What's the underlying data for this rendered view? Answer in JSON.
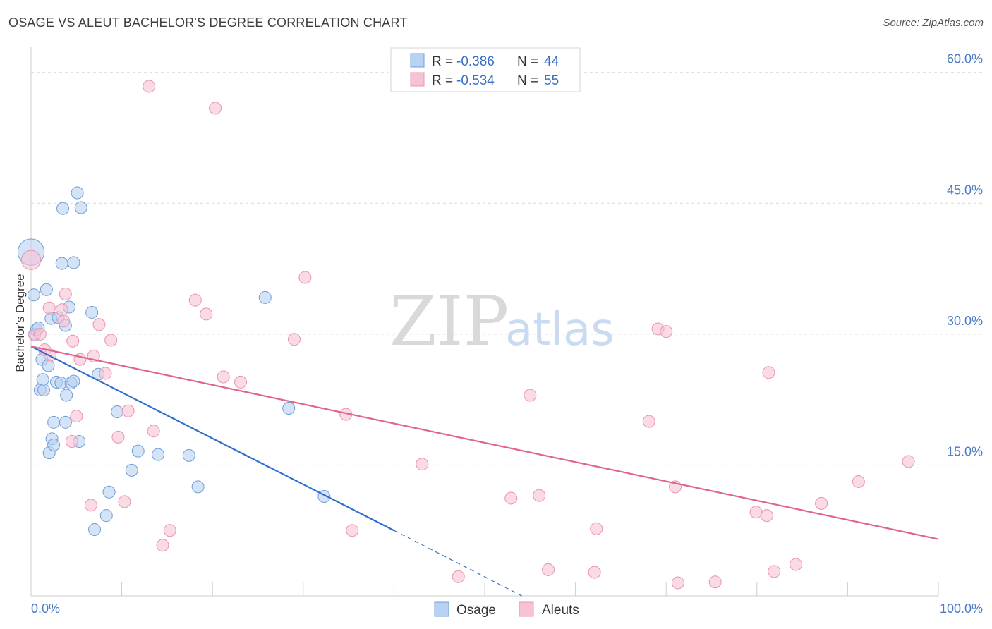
{
  "title": "OSAGE VS ALEUT BACHELOR'S DEGREE CORRELATION CHART",
  "source": "Source: ZipAtlas.com",
  "watermark": {
    "part1": "ZIP",
    "part2": "atlas"
  },
  "colors": {
    "osage_fill": "#b9d1f2",
    "osage_stroke": "#6f9ed8",
    "osage_line": "#2f6fd0",
    "aleut_fill": "#f7c3d3",
    "aleut_stroke": "#e993b0",
    "aleut_line": "#e0648e",
    "grid": "#d9d9d9",
    "axis": "#cccccc",
    "tick_text": "#4a7ac9"
  },
  "legend": {
    "rows": [
      {
        "r_label": "R =",
        "r_value": "-0.386",
        "n_label": "N =",
        "n_value": "44",
        "series": "osage"
      },
      {
        "r_label": "R =",
        "r_value": "-0.534",
        "n_label": "N =",
        "n_value": "55",
        "series": "aleut"
      }
    ]
  },
  "bottom_legend": [
    {
      "label": "Osage",
      "series": "osage"
    },
    {
      "label": "Aleuts",
      "series": "aleut"
    }
  ],
  "chart_data": {
    "type": "scatter",
    "xlabel": "",
    "ylabel": "Bachelor's Degree",
    "xlim": [
      0,
      100
    ],
    "ylim": [
      0,
      62
    ],
    "x_tick_labels": [
      {
        "value": 0,
        "label": "0.0%"
      },
      {
        "value": 100,
        "label": "100.0%"
      }
    ],
    "y_tick_labels": [
      {
        "value": 15,
        "label": "15.0%"
      },
      {
        "value": 30,
        "label": "30.0%"
      },
      {
        "value": 45,
        "label": "45.0%"
      },
      {
        "value": 60,
        "label": "60.0%"
      }
    ],
    "x_minor_ticks": [
      10,
      20,
      30,
      40,
      50,
      60,
      70,
      80,
      90,
      100
    ],
    "grid": true,
    "legend_position": "top-center",
    "series": [
      {
        "name": "Osage",
        "key": "osage",
        "points": [
          [
            0.0,
            39.4,
            2.2
          ],
          [
            0.3,
            34.5,
            1
          ],
          [
            0.4,
            30.0,
            1
          ],
          [
            0.6,
            30.5,
            1
          ],
          [
            0.8,
            30.7,
            1
          ],
          [
            1.0,
            23.6,
            1
          ],
          [
            1.2,
            27.1,
            1
          ],
          [
            1.3,
            24.8,
            1
          ],
          [
            1.4,
            23.6,
            1
          ],
          [
            1.7,
            35.1,
            1
          ],
          [
            1.9,
            26.4,
            1
          ],
          [
            2.0,
            16.4,
            1
          ],
          [
            2.2,
            31.8,
            1
          ],
          [
            2.3,
            18.0,
            1
          ],
          [
            2.5,
            17.3,
            1
          ],
          [
            2.5,
            19.9,
            1
          ],
          [
            2.8,
            24.5,
            1
          ],
          [
            3.0,
            31.9,
            1
          ],
          [
            3.3,
            24.4,
            1
          ],
          [
            3.4,
            38.1,
            1
          ],
          [
            3.5,
            44.4,
            1
          ],
          [
            3.8,
            31.0,
            1
          ],
          [
            3.8,
            19.9,
            1
          ],
          [
            3.9,
            23.0,
            1
          ],
          [
            4.2,
            33.1,
            1
          ],
          [
            4.4,
            24.4,
            1
          ],
          [
            4.7,
            24.6,
            1
          ],
          [
            4.7,
            38.2,
            1
          ],
          [
            5.1,
            46.2,
            1
          ],
          [
            5.3,
            17.7,
            1
          ],
          [
            5.5,
            44.5,
            1
          ],
          [
            6.7,
            32.5,
            1
          ],
          [
            7.0,
            7.6,
            1
          ],
          [
            7.4,
            25.4,
            1
          ],
          [
            8.3,
            9.2,
            1
          ],
          [
            8.6,
            11.9,
            1
          ],
          [
            9.5,
            21.1,
            1
          ],
          [
            11.1,
            14.4,
            1
          ],
          [
            11.8,
            16.6,
            1
          ],
          [
            14.0,
            16.2,
            1
          ],
          [
            17.4,
            16.1,
            1
          ],
          [
            18.4,
            12.5,
            1
          ],
          [
            25.8,
            34.2,
            1
          ],
          [
            28.4,
            21.5,
            1
          ],
          [
            32.3,
            11.4,
            1
          ]
        ],
        "trend_solid": [
          [
            0.0,
            28.6
          ],
          [
            40.0,
            7.5
          ]
        ],
        "trend_dashed": [
          [
            40.0,
            7.5
          ],
          [
            54.1,
            0.0
          ]
        ]
      },
      {
        "name": "Aleuts",
        "key": "aleut",
        "points": [
          [
            0.0,
            38.5,
            1.6
          ],
          [
            0.4,
            29.9,
            1
          ],
          [
            1.0,
            30.0,
            1
          ],
          [
            1.5,
            28.2,
            1
          ],
          [
            2.0,
            33.0,
            1
          ],
          [
            2.1,
            27.6,
            1
          ],
          [
            3.4,
            32.8,
            1
          ],
          [
            3.6,
            31.5,
            1
          ],
          [
            3.8,
            34.6,
            1
          ],
          [
            4.5,
            17.7,
            1
          ],
          [
            4.6,
            29.2,
            1
          ],
          [
            5.0,
            20.6,
            1
          ],
          [
            5.4,
            27.1,
            1
          ],
          [
            6.6,
            10.4,
            1
          ],
          [
            6.9,
            27.5,
            1
          ],
          [
            7.5,
            31.1,
            1
          ],
          [
            8.2,
            25.5,
            1
          ],
          [
            8.8,
            29.3,
            1
          ],
          [
            9.6,
            18.2,
            1
          ],
          [
            10.3,
            10.8,
            1
          ],
          [
            10.7,
            21.2,
            1
          ],
          [
            13.0,
            58.4,
            1
          ],
          [
            13.5,
            18.9,
            1
          ],
          [
            14.5,
            5.8,
            1
          ],
          [
            15.3,
            7.5,
            1
          ],
          [
            18.1,
            33.9,
            1
          ],
          [
            19.3,
            32.3,
            1
          ],
          [
            20.3,
            55.9,
            1
          ],
          [
            21.2,
            25.1,
            1
          ],
          [
            23.1,
            24.5,
            1
          ],
          [
            29.0,
            29.4,
            1
          ],
          [
            30.2,
            36.5,
            1
          ],
          [
            34.7,
            20.8,
            1
          ],
          [
            35.4,
            7.5,
            1
          ],
          [
            43.1,
            15.1,
            1
          ],
          [
            47.1,
            2.2,
            1
          ],
          [
            52.9,
            11.2,
            1
          ],
          [
            55.0,
            23.0,
            1
          ],
          [
            56.0,
            11.5,
            1
          ],
          [
            57.0,
            3.0,
            1
          ],
          [
            62.1,
            2.7,
            1
          ],
          [
            62.3,
            7.7,
            1
          ],
          [
            68.1,
            20.0,
            1
          ],
          [
            69.1,
            30.6,
            1
          ],
          [
            70.0,
            30.3,
            1
          ],
          [
            71.0,
            12.5,
            1
          ],
          [
            71.3,
            1.5,
            1
          ],
          [
            75.4,
            1.6,
            1
          ],
          [
            79.9,
            9.6,
            1
          ],
          [
            81.1,
            9.2,
            1
          ],
          [
            81.3,
            25.6,
            1
          ],
          [
            81.9,
            2.8,
            1
          ],
          [
            84.3,
            3.6,
            1
          ],
          [
            87.1,
            10.6,
            1
          ],
          [
            91.2,
            13.1,
            1
          ],
          [
            96.7,
            15.4,
            1
          ]
        ],
        "trend_solid": [
          [
            0.0,
            28.6
          ],
          [
            100.0,
            6.5
          ]
        ]
      }
    ]
  }
}
